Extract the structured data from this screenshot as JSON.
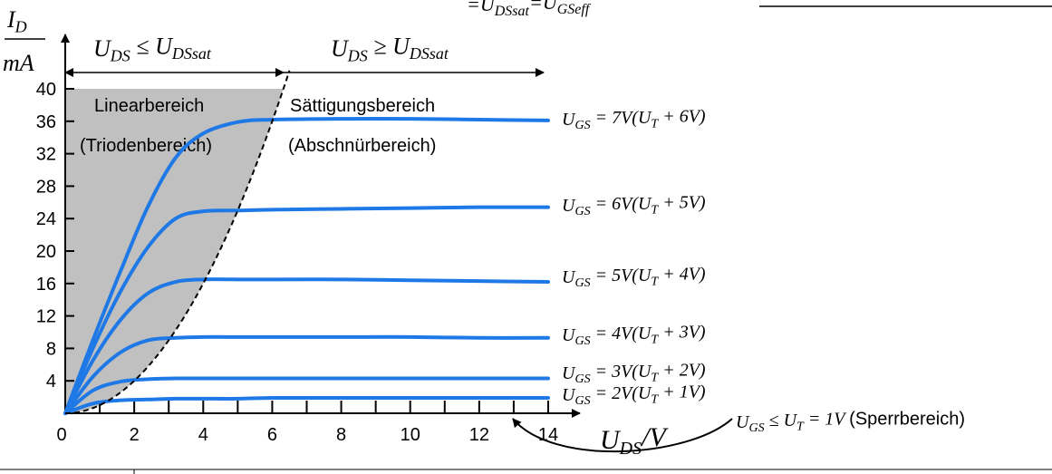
{
  "chart_data": {
    "type": "line",
    "top_fragment": "=U_DSsat=U_GSeff",
    "y_axis": {
      "label_numerator": "I_D",
      "label_denominator": "mA",
      "ticks": [
        "4",
        "8",
        "12",
        "16",
        "20",
        "24",
        "28",
        "32",
        "36",
        "40"
      ],
      "ylim": [
        0,
        40
      ]
    },
    "x_axis": {
      "label": "U_DS/V",
      "ticks": [
        "0",
        "2",
        "4",
        "6",
        "8",
        "10",
        "12",
        "14"
      ],
      "xlim": [
        0,
        14
      ]
    },
    "regions": {
      "linear_header": "U_DS ≤ U_DSsat",
      "saturation_header": "U_DS ≥ U_DSsat",
      "linear_name": "Linearbereich",
      "linear_alt": "(Triodenbereich)",
      "saturation_name": "Sättigungsbereich",
      "saturation_alt": "(Abschnürbereich)"
    },
    "boundary_curve": {
      "style": "dashed",
      "color": "#000000",
      "x": [
        0,
        1,
        2,
        3,
        4,
        5,
        6,
        6.5
      ],
      "y": [
        0,
        1,
        4,
        9,
        16,
        25,
        36,
        42
      ]
    },
    "series": [
      {
        "name": "U_GS = 7V(U_T + 6V)",
        "color": "#1e78e6",
        "x": [
          0,
          0.8,
          1.6,
          2.4,
          3.2,
          4,
          5,
          6,
          8,
          10,
          12,
          14
        ],
        "y": [
          0,
          9,
          17.5,
          25.5,
          31.5,
          34.5,
          35.9,
          36.2,
          36.3,
          36.3,
          36.2,
          36.1
        ]
      },
      {
        "name": "U_GS = 6V(U_T + 5V)",
        "color": "#1e78e6",
        "x": [
          0,
          0.8,
          1.6,
          2.4,
          3.2,
          4,
          5,
          6,
          8,
          10,
          12,
          14
        ],
        "y": [
          0,
          8,
          15,
          20.5,
          24,
          24.9,
          25,
          25.1,
          25.2,
          25.3,
          25.4,
          25.4
        ]
      },
      {
        "name": "U_GS = 5V(U_T + 4V)",
        "color": "#1e78e6",
        "x": [
          0,
          0.8,
          1.6,
          2.4,
          3.2,
          4,
          5,
          6,
          8,
          10,
          12,
          14
        ],
        "y": [
          0,
          6.5,
          11.5,
          14.8,
          16.2,
          16.5,
          16.5,
          16.5,
          16.5,
          16.4,
          16.3,
          16.2
        ]
      },
      {
        "name": "U_GS = 4V(U_T + 3V)",
        "color": "#1e78e6",
        "x": [
          0,
          0.8,
          1.6,
          2.4,
          3.2,
          4,
          5,
          6,
          8,
          10,
          12,
          14
        ],
        "y": [
          0,
          4.5,
          7.5,
          9,
          9.3,
          9.4,
          9.4,
          9.4,
          9.4,
          9.4,
          9.3,
          9.3
        ]
      },
      {
        "name": "U_GS = 3V(U_T + 2V)",
        "color": "#1e78e6",
        "x": [
          0,
          0.8,
          1.6,
          2.4,
          3.2,
          4,
          5,
          6,
          8,
          10,
          12,
          14
        ],
        "y": [
          0,
          2.8,
          3.9,
          4.2,
          4.3,
          4.3,
          4.3,
          4.3,
          4.3,
          4.3,
          4.3,
          4.3
        ]
      },
      {
        "name": "U_GS = 2V(U_T + 1V)",
        "color": "#1e78e6",
        "x": [
          0,
          0.8,
          1.6,
          2.4,
          3.2,
          4,
          5,
          6,
          8,
          10,
          12,
          14
        ],
        "y": [
          0,
          1.2,
          1.6,
          1.7,
          1.8,
          1.8,
          1.8,
          1.9,
          1.9,
          1.9,
          1.9,
          1.9
        ]
      }
    ],
    "cutoff_label": "U_GS ≤ U_T = 1V (Sperrbereich)",
    "grid": false
  }
}
